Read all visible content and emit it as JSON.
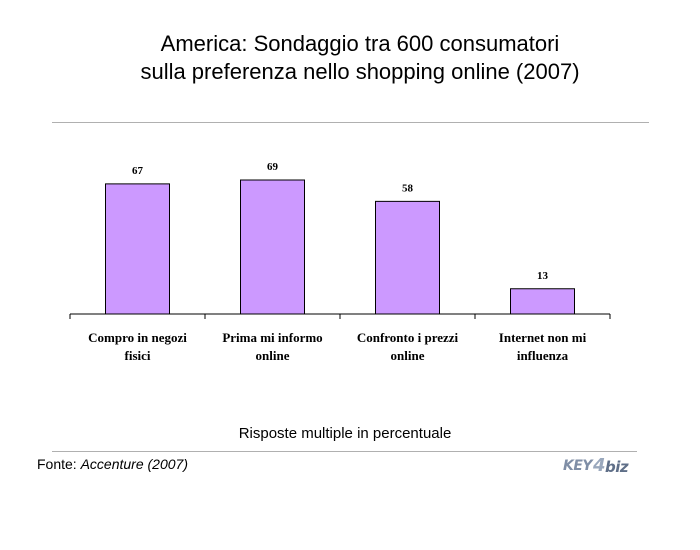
{
  "title": {
    "line1": "America: Sondaggio tra 600 consumatori",
    "line2": "sulla preferenza nello shopping online (2007)"
  },
  "caption": "Risposte multiple in percentuale",
  "source": {
    "label": "Fonte:",
    "name": "Accenture (2007)"
  },
  "logo": "KEY4biz",
  "colors": {
    "bar_fill": "#cc99ff",
    "bar_stroke": "#000000",
    "axis": "#000000",
    "rule": "#b0b0b0"
  },
  "chart_data": {
    "type": "bar",
    "categories": [
      [
        "Compro in negozi",
        "fisici"
      ],
      [
        "Prima mi informo",
        "online"
      ],
      [
        "Confronto i prezzi",
        "online"
      ],
      [
        "Internet non mi",
        "influenza"
      ]
    ],
    "values": [
      67,
      69,
      58,
      13
    ],
    "data_labels": [
      "67",
      "69",
      "58",
      "13"
    ],
    "title": "",
    "xlabel": "",
    "ylabel": "",
    "ylim": [
      0,
      69
    ],
    "grid": false,
    "legend": "none"
  }
}
